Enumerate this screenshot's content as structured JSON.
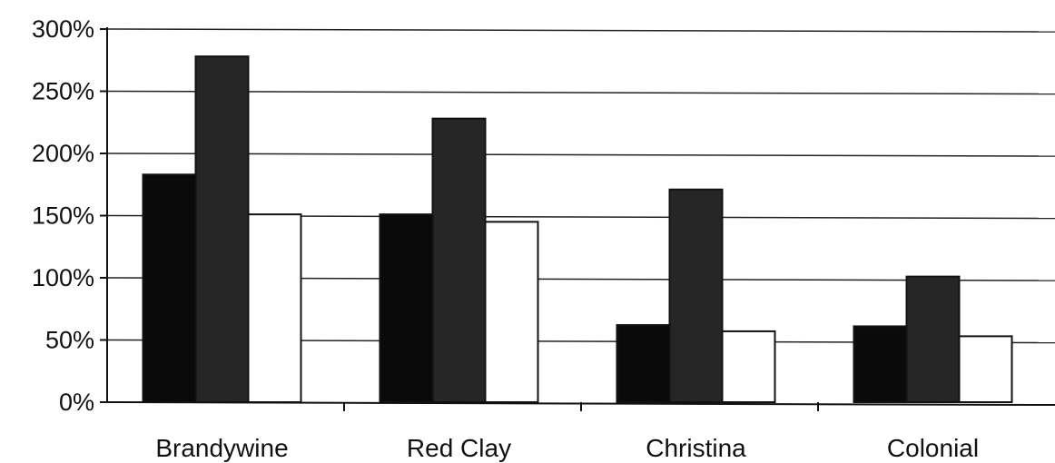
{
  "chart_data": {
    "type": "bar",
    "categories": [
      "Brandywine",
      "Red Clay",
      "Christina",
      "Colonial"
    ],
    "series": [
      {
        "values": [
          183,
          151,
          62,
          61
        ],
        "color": "#0a0a0a"
      },
      {
        "values": [
          278,
          228,
          171,
          101
        ],
        "color": "#262626"
      },
      {
        "values": [
          151,
          145,
          57,
          53
        ],
        "color": "#ffffff"
      }
    ],
    "ylim": [
      0,
      300
    ],
    "yticks": [
      "0%",
      "50%",
      "100%",
      "150%",
      "200%",
      "250%",
      "300%"
    ],
    "ytick_values": [
      0,
      50,
      100,
      150,
      200,
      250,
      300
    ],
    "grid": true,
    "legend": "none"
  }
}
